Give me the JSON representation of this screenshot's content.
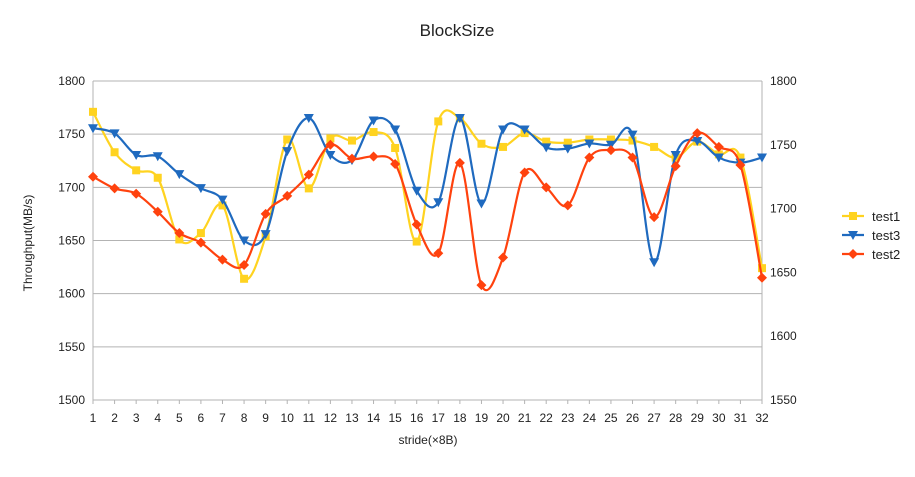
{
  "chart_data": {
    "type": "line",
    "title": "BlockSize",
    "xlabel": "stride(×8B)",
    "ylabel": "Throughput(MB/s)",
    "categories": [
      "1",
      "2",
      "3",
      "4",
      "5",
      "6",
      "7",
      "8",
      "9",
      "10",
      "11",
      "12",
      "13",
      "14",
      "15",
      "16",
      "17",
      "18",
      "19",
      "20",
      "21",
      "22",
      "23",
      "24",
      "25",
      "26",
      "27",
      "28",
      "29",
      "30",
      "31",
      "32"
    ],
    "y_left": {
      "min": 1500,
      "max": 1800,
      "ticks": [
        1500,
        1550,
        1600,
        1650,
        1700,
        1750,
        1800
      ]
    },
    "y_right": {
      "min": 1550,
      "max": 1800,
      "ticks": [
        1550,
        1600,
        1650,
        1700,
        1750,
        1800
      ]
    },
    "grid": true,
    "smooth": true,
    "legend_position": "right",
    "series": [
      {
        "name": "test1",
        "axis": "left",
        "color": "#FFD320",
        "marker": "square",
        "values": [
          1771,
          1733,
          1716,
          1709,
          1651,
          1657,
          1683,
          1614,
          1654,
          1745,
          1699,
          1746,
          1744,
          1752,
          1737,
          1649,
          1762,
          1765,
          1741,
          1738,
          1751,
          1743,
          1742,
          1745,
          1745,
          1744,
          1738,
          1728,
          1743,
          1731,
          1728,
          1624
        ]
      },
      {
        "name": "test3",
        "axis": "right",
        "color": "#1F6ABF",
        "marker": "triangle",
        "values": [
          1763,
          1759,
          1742,
          1741,
          1727,
          1716,
          1707,
          1675,
          1680,
          1745,
          1771,
          1742,
          1738,
          1769,
          1762,
          1714,
          1705,
          1771,
          1704,
          1762,
          1762,
          1748,
          1747,
          1751,
          1750,
          1758,
          1658,
          1742,
          1753,
          1740,
          1736,
          1740
        ]
      },
      {
        "name": "test2",
        "axis": "left",
        "color": "#FF420E",
        "marker": "diamond",
        "values": [
          1710,
          1699,
          1694,
          1677,
          1657,
          1648,
          1632,
          1627,
          1675,
          1692,
          1712,
          1740,
          1727,
          1729,
          1722,
          1665,
          1638,
          1723,
          1608,
          1634,
          1714,
          1700,
          1683,
          1728,
          1735,
          1728,
          1672,
          1720,
          1751,
          1738,
          1721,
          1615
        ]
      }
    ]
  }
}
